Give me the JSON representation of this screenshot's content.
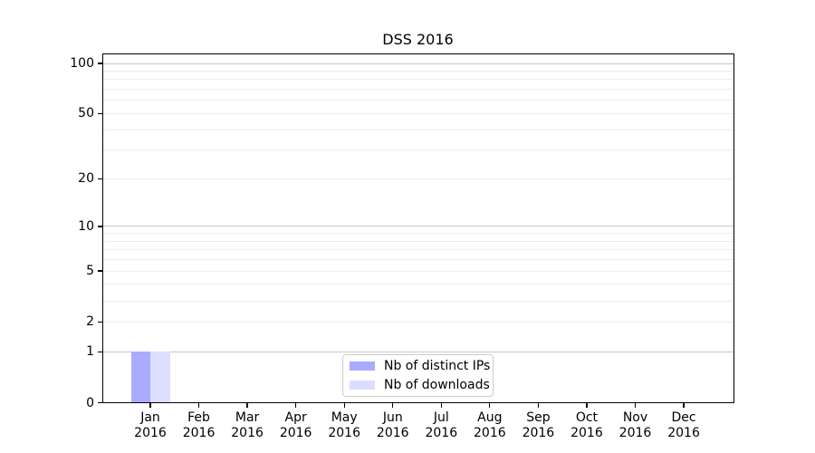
{
  "chart_data": {
    "type": "bar",
    "title": "DSS 2016",
    "categories": [
      "Jan 2016",
      "Feb 2016",
      "Mar 2016",
      "Apr 2016",
      "May 2016",
      "Jun 2016",
      "Jul 2016",
      "Aug 2016",
      "Sep 2016",
      "Oct 2016",
      "Nov 2016",
      "Dec 2016"
    ],
    "x_tick_months": [
      "Jan",
      "Feb",
      "Mar",
      "Apr",
      "May",
      "Jun",
      "Jul",
      "Aug",
      "Sep",
      "Oct",
      "Nov",
      "Dec"
    ],
    "x_tick_year": "2016",
    "series": [
      {
        "name": "Nb of distinct IPs",
        "color": "#aaaaff",
        "values": [
          1,
          0,
          0,
          0,
          0,
          0,
          0,
          0,
          0,
          0,
          0,
          0
        ]
      },
      {
        "name": "Nb of downloads",
        "color": "#ddddff",
        "values": [
          1,
          0,
          0,
          0,
          0,
          0,
          0,
          0,
          0,
          0,
          0,
          0
        ]
      }
    ],
    "xlabel": "",
    "ylabel": "",
    "y_axis": {
      "scale": "log1p",
      "tick_values": [
        0,
        1,
        2,
        5,
        10,
        20,
        50,
        100
      ],
      "tick_labels": [
        "0",
        "1",
        "2",
        "5",
        "10",
        "20",
        "50",
        "100"
      ],
      "decade_gridline_values": [
        1,
        10,
        100
      ],
      "minor_gridline_values": [
        2,
        3,
        4,
        5,
        6,
        7,
        8,
        9,
        20,
        30,
        40,
        50,
        60,
        70,
        80,
        90
      ],
      "ylim": [
        0,
        115
      ]
    },
    "legend": {
      "position": "inside-bottom-center",
      "entries": [
        "Nb of distinct IPs",
        "Nb of downloads"
      ]
    },
    "grid": true,
    "colors": {
      "decade_gridline": "#c7c7c7",
      "minor_gridline": "#ededed",
      "axis": "#000000",
      "text": "#000000",
      "legend_border": "#cccccc",
      "background": "#ffffff"
    }
  }
}
